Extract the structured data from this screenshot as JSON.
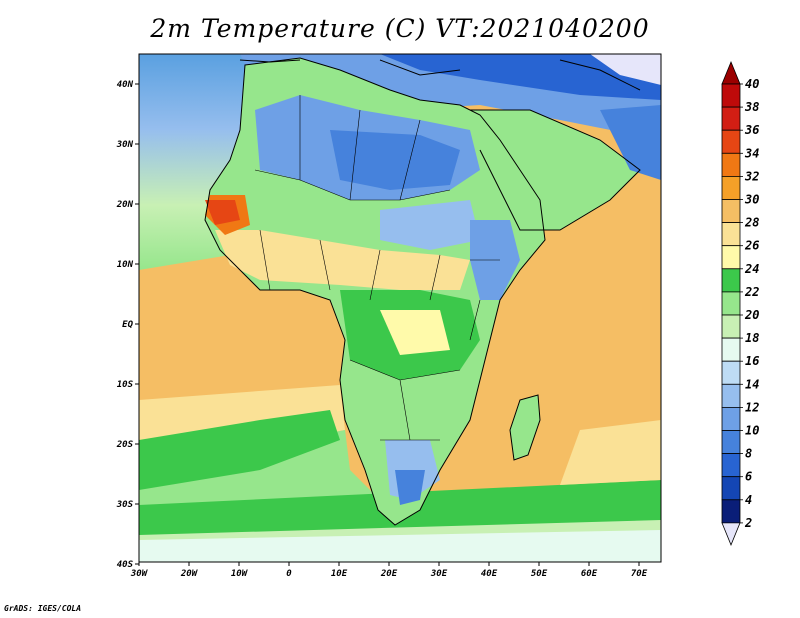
{
  "title": "2m Temperature (C)  VT:2021040200",
  "credit": "GrADS: IGES/COLA",
  "map": {
    "lon_ticks": [
      "30W",
      "20W",
      "10W",
      "0",
      "10E",
      "20E",
      "30E",
      "40E",
      "50E",
      "60E",
      "70E"
    ],
    "lat_ticks": [
      "40N",
      "30N",
      "20N",
      "10N",
      "EQ",
      "10S",
      "20S",
      "30S",
      "40S"
    ],
    "lon_range": [
      -30,
      75
    ],
    "lat_range": [
      -40,
      45
    ]
  },
  "colorbar": {
    "labels": [
      "2",
      "4",
      "6",
      "8",
      "10",
      "12",
      "14",
      "16",
      "18",
      "20",
      "22",
      "24",
      "26",
      "28",
      "30",
      "32",
      "34",
      "36",
      "38",
      "40"
    ],
    "colors": [
      "#e6e6fa",
      "#0a1e78",
      "#1446b4",
      "#2864d2",
      "#4682dc",
      "#6ea0e6",
      "#96beee",
      "#bedcf5",
      "#e6faf0",
      "#c8f0b4",
      "#96e68c",
      "#3cc84b",
      "#fffaaa",
      "#fae196",
      "#f5be64",
      "#f5a028",
      "#f07814",
      "#e64614",
      "#d21e14",
      "#be0a0a",
      "#9b0000"
    ]
  }
}
